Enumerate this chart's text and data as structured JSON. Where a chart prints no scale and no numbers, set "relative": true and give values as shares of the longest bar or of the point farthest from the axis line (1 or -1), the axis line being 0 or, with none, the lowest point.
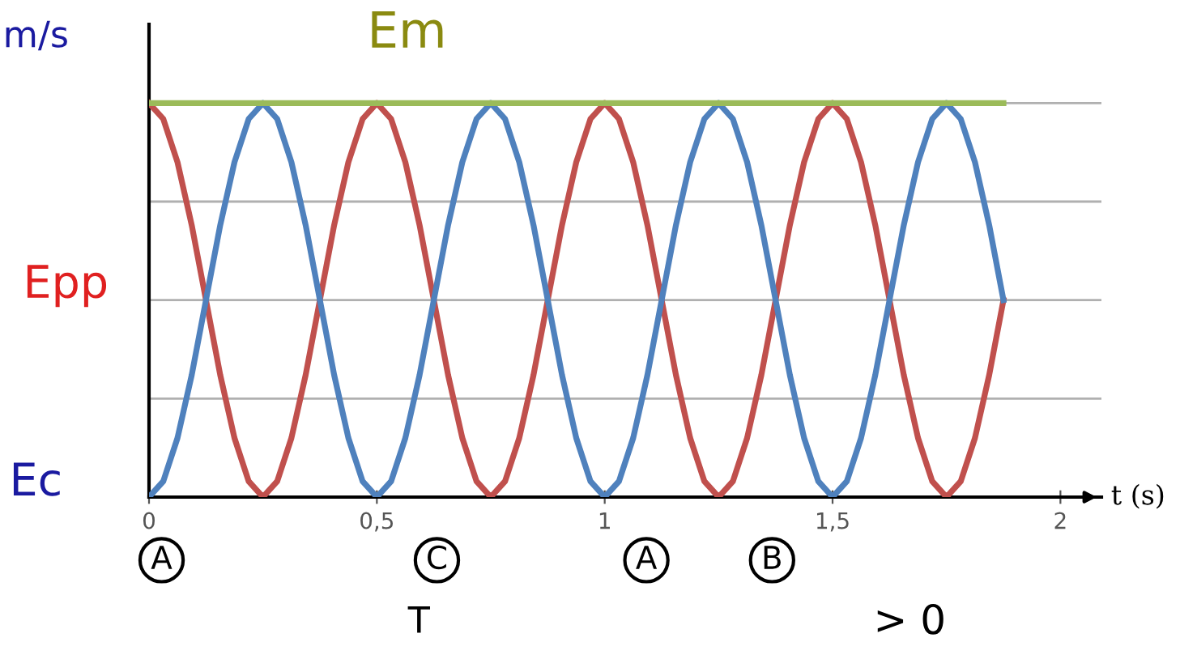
{
  "chart_data": {
    "type": "line",
    "relative": true,
    "xlabel": "t (s)",
    "xlim": [
      0,
      2.09
    ],
    "xticks": [
      0,
      {
        "value": 0.5,
        "label": "0,5"
      },
      1,
      {
        "value": 1.5,
        "label": "1,5"
      },
      2
    ],
    "grid": "y",
    "legend": false,
    "marker": "none",
    "line_style": "solid",
    "x": [
      0,
      0.03125,
      0.0625,
      0.09375,
      0.125,
      0.15625,
      0.1875,
      0.21875,
      0.25,
      0.28125,
      0.3125,
      0.34375,
      0.375,
      0.40625,
      0.4375,
      0.46875,
      0.5,
      0.53125,
      0.5625,
      0.59375,
      0.625,
      0.65625,
      0.6875,
      0.71875,
      0.75,
      0.78125,
      0.8125,
      0.84375,
      0.875,
      0.90625,
      0.9375,
      0.96875,
      1,
      1.03125,
      1.0625,
      1.09375,
      1.125,
      1.15625,
      1.1875,
      1.21875,
      1.25,
      1.28125,
      1.3125,
      1.34375,
      1.375,
      1.40625,
      1.4375,
      1.46875,
      1.5,
      1.53125,
      1.5625,
      1.59375,
      1.625,
      1.65625,
      1.6875,
      1.71875,
      1.75,
      1.78125,
      1.8125,
      1.84375,
      1.875
    ],
    "series": [
      {
        "color": "#c0504d",
        "values": [
          1,
          0.96,
          0.85,
          0.69,
          0.5,
          0.31,
          0.15,
          0.04,
          0,
          0.04,
          0.15,
          0.31,
          0.5,
          0.69,
          0.85,
          0.96,
          1,
          0.96,
          0.85,
          0.69,
          0.5,
          0.31,
          0.15,
          0.04,
          0,
          0.04,
          0.15,
          0.31,
          0.5,
          0.69,
          0.85,
          0.96,
          1,
          0.96,
          0.85,
          0.69,
          0.5,
          0.31,
          0.15,
          0.04,
          0,
          0.04,
          0.15,
          0.31,
          0.5,
          0.69,
          0.85,
          0.96,
          1,
          0.96,
          0.85,
          0.69,
          0.5,
          0.31,
          0.15,
          0.04,
          0,
          0.04,
          0.15,
          0.31,
          0.5
        ]
      },
      {
        "color": "#4f81bd",
        "values": [
          0,
          0.04,
          0.15,
          0.31,
          0.5,
          0.69,
          0.85,
          0.96,
          1,
          0.96,
          0.85,
          0.69,
          0.5,
          0.31,
          0.15,
          0.04,
          0,
          0.04,
          0.15,
          0.31,
          0.5,
          0.69,
          0.85,
          0.96,
          1,
          0.96,
          0.85,
          0.69,
          0.5,
          0.31,
          0.15,
          0.04,
          0,
          0.04,
          0.15,
          0.31,
          0.5,
          0.69,
          0.85,
          0.96,
          1,
          0.96,
          0.85,
          0.69,
          0.5,
          0.31,
          0.15,
          0.04,
          0,
          0.04,
          0.15,
          0.31,
          0.5,
          0.69,
          0.85,
          0.96,
          1,
          0.96,
          0.85,
          0.69,
          0.5
        ]
      },
      {
        "color": "#9bbb59",
        "x": [
          0,
          1.875
        ],
        "values": [
          1,
          1
        ]
      }
    ],
    "annotations": [
      "Em",
      "Epp",
      "Ec",
      "m/s",
      "A",
      "C",
      "A",
      "B",
      "T",
      "> 0"
    ]
  }
}
